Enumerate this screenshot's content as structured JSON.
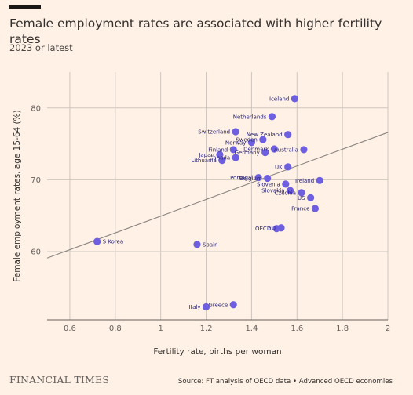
{
  "header": {
    "title": "Female employment rates are associated with higher fertility rates",
    "subtitle": "2023 or latest"
  },
  "footer": {
    "brand": "FINANCIAL TIMES",
    "source": "Source: FT analysis of OECD data • Advanced OECD economies"
  },
  "colors": {
    "background": "#fff1e5",
    "point": "#6d5fe0",
    "trendline": "#8a8480",
    "grid": "#cfc6bd"
  },
  "chart_data": {
    "type": "scatter",
    "xlabel": "Fertility rate, births per woman",
    "ylabel": "Female employment rates, age 15-64 (%)",
    "xlim": [
      0.5,
      2.0
    ],
    "ylim": [
      50.5,
      85
    ],
    "xticks": [
      0.6,
      0.8,
      1,
      1.2,
      1.4,
      1.6,
      1.8,
      2
    ],
    "yticks": [
      60,
      70,
      80
    ],
    "grid": true,
    "trendline": {
      "x": [
        0.5,
        2.0
      ],
      "y": [
        59.1,
        76.6
      ]
    },
    "points": [
      {
        "label": "Iceland",
        "x": 1.59,
        "y": 81.3,
        "pos": "left"
      },
      {
        "label": "Netherlands",
        "x": 1.49,
        "y": 78.8,
        "pos": "left"
      },
      {
        "label": "Switzerland",
        "x": 1.33,
        "y": 76.7,
        "pos": "left"
      },
      {
        "label": "New Zealand",
        "x": 1.56,
        "y": 76.3,
        "pos": "left"
      },
      {
        "label": "Sweden",
        "x": 1.45,
        "y": 75.6,
        "pos": "left"
      },
      {
        "label": "Norway",
        "x": 1.4,
        "y": 75.2,
        "pos": "left"
      },
      {
        "label": "Finland",
        "x": 1.32,
        "y": 74.2,
        "pos": "left"
      },
      {
        "label": "Denmark",
        "x": 1.5,
        "y": 74.3,
        "pos": "left"
      },
      {
        "label": "Australia",
        "x": 1.63,
        "y": 74.2,
        "pos": "left"
      },
      {
        "label": "Germany",
        "x": 1.46,
        "y": 73.8,
        "pos": "left"
      },
      {
        "label": "Japan",
        "x": 1.26,
        "y": 73.5,
        "pos": "left"
      },
      {
        "label": "Canada",
        "x": 1.33,
        "y": 73.1,
        "pos": "left"
      },
      {
        "label": "Lithuania",
        "x": 1.27,
        "y": 72.7,
        "pos": "left"
      },
      {
        "label": "UK",
        "x": 1.56,
        "y": 71.8,
        "pos": "left"
      },
      {
        "label": "Portugal",
        "x": 1.43,
        "y": 70.3,
        "pos": "left"
      },
      {
        "label": "Belgium",
        "x": 1.47,
        "y": 70.2,
        "pos": "left"
      },
      {
        "label": "Ireland",
        "x": 1.7,
        "y": 69.9,
        "pos": "left"
      },
      {
        "label": "Slovenia",
        "x": 1.55,
        "y": 69.4,
        "pos": "left"
      },
      {
        "label": "Slovakia",
        "x": 1.57,
        "y": 68.5,
        "pos": "left"
      },
      {
        "label": "Czechia",
        "x": 1.62,
        "y": 68.2,
        "pos": "left"
      },
      {
        "label": "US",
        "x": 1.66,
        "y": 67.5,
        "pos": "left"
      },
      {
        "label": "France",
        "x": 1.68,
        "y": 66.0,
        "pos": "left"
      },
      {
        "label": "OECD",
        "x": 1.51,
        "y": 63.2,
        "pos": "left"
      },
      {
        "label": "EU",
        "x": 1.53,
        "y": 63.3,
        "pos": "left"
      },
      {
        "label": "S Korea",
        "x": 0.72,
        "y": 61.4,
        "pos": "right"
      },
      {
        "label": "Spain",
        "x": 1.16,
        "y": 61.0,
        "pos": "right"
      },
      {
        "label": "Greece",
        "x": 1.32,
        "y": 52.6,
        "pos": "left"
      },
      {
        "label": "Italy",
        "x": 1.2,
        "y": 52.3,
        "pos": "left"
      }
    ]
  }
}
